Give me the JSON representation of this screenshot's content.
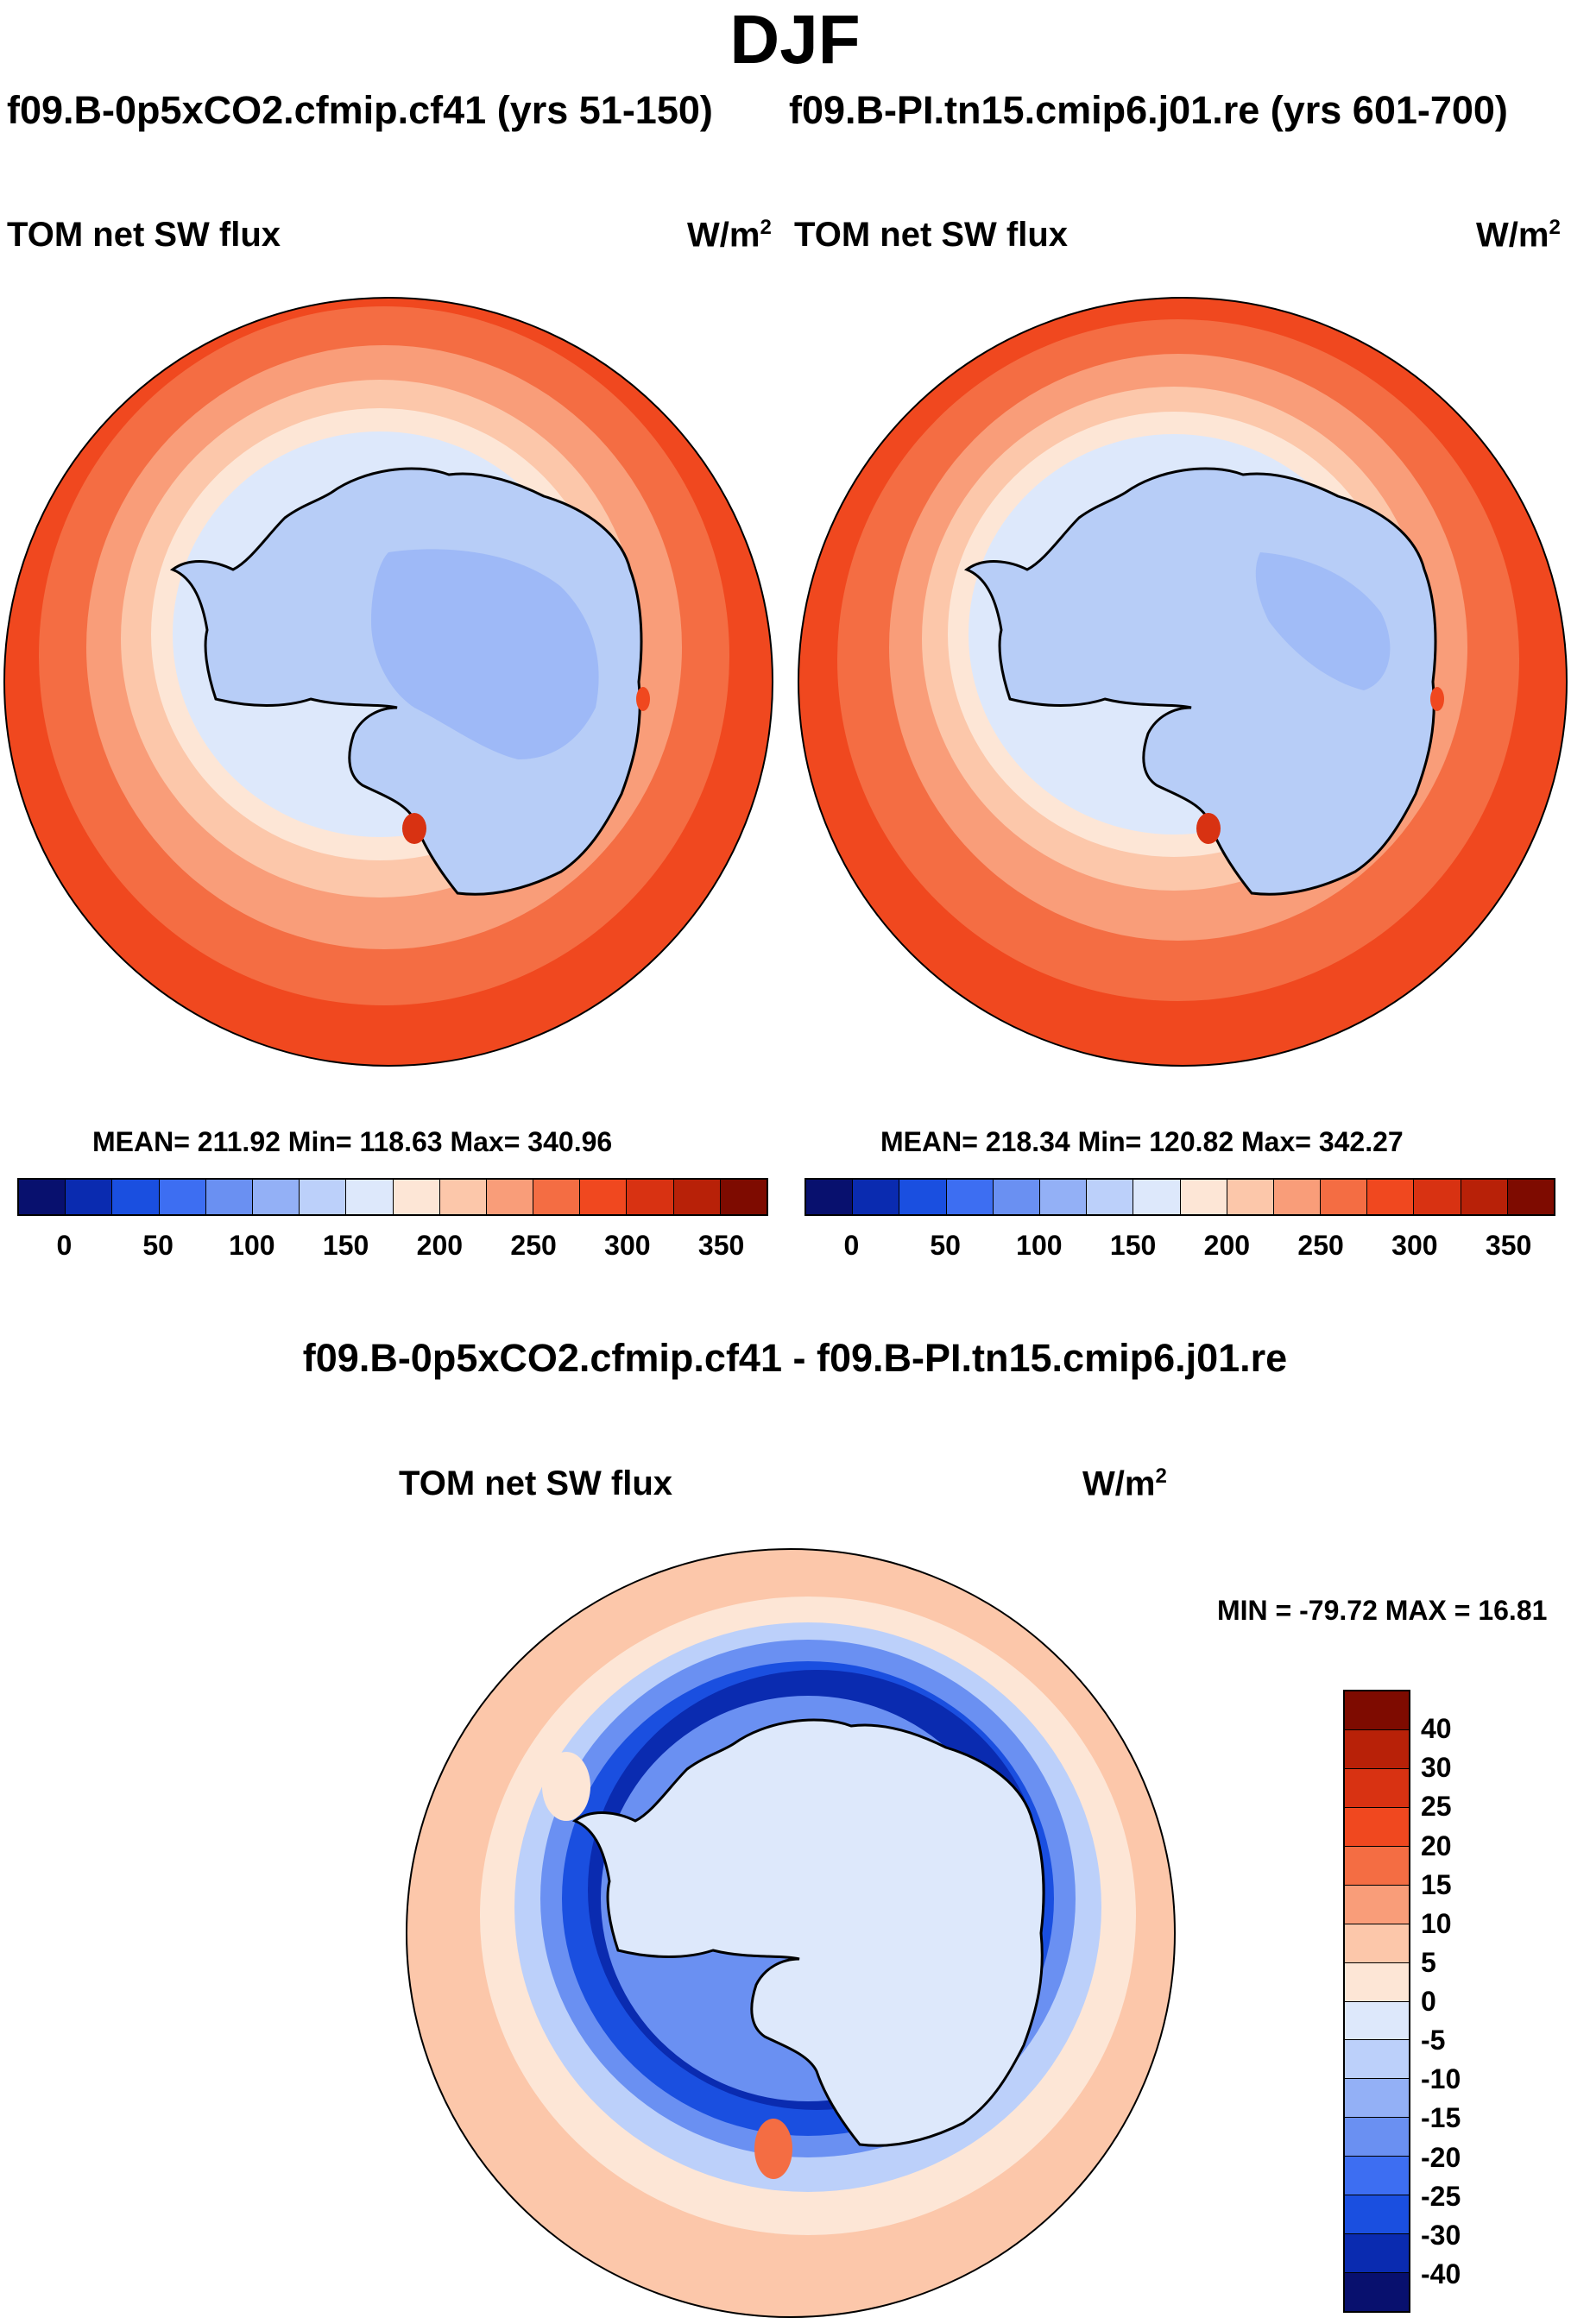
{
  "title": "DJF",
  "panel_left": {
    "case_title": "f09.B-0p5xCO2.cfmip.cf41 (yrs 51-150)",
    "variable": "TOM net SW flux",
    "units": "W/m",
    "units_exp": "2",
    "stats": "MEAN= 211.92  Min= 118.63  Max= 340.96"
  },
  "panel_right": {
    "case_title": "f09.B-PI.tn15.cmip6.j01.re (yrs 601-700)",
    "variable": "TOM net SW flux",
    "units": "W/m",
    "units_exp": "2",
    "stats": "MEAN= 218.34  Min= 120.82  Max= 342.27"
  },
  "panel_diff": {
    "title": "f09.B-0p5xCO2.cfmip.cf41 - f09.B-PI.tn15.cmip6.j01.re",
    "variable": "TOM net SW flux",
    "units": "W/m",
    "units_exp": "2",
    "stats": "MIN = -79.72 MAX =  16.81"
  },
  "colors": {
    "abs_scale": [
      "#08106e",
      "#0a2bb0",
      "#1a4fe0",
      "#3d6ef2",
      "#6a90f2",
      "#93b0f6",
      "#bcd0fa",
      "#dde8fb",
      "#fde6d6",
      "#fcc7aa",
      "#f99d79",
      "#f46d43",
      "#f0481f",
      "#d83212",
      "#b82108",
      "#7e0b00"
    ],
    "diff_scale": [
      "#08106e",
      "#0a2bb0",
      "#1a4fe0",
      "#3d6ef2",
      "#6a90f2",
      "#93b0f6",
      "#bcd0fa",
      "#dde8fb",
      "#fde6d6",
      "#fcc7aa",
      "#f99d79",
      "#f46d43",
      "#f0481f",
      "#d83212",
      "#b82108",
      "#7e0b00"
    ],
    "land": "#b7cdf7",
    "ocean_far": "#f0481f"
  },
  "chart_data": [
    {
      "type": "heatmap",
      "projection": "south polar stereographic",
      "title": "f09.B-0p5xCO2.cfmip.cf41 (yrs 51-150)",
      "variable": "TOM net SW flux",
      "units": "W/m2",
      "mean": 211.92,
      "min": 118.63,
      "max": 340.96,
      "colorbar_ticks": [
        0,
        50,
        100,
        150,
        200,
        250,
        300,
        350
      ]
    },
    {
      "type": "heatmap",
      "projection": "south polar stereographic",
      "title": "f09.B-PI.tn15.cmip6.j01.re (yrs 601-700)",
      "variable": "TOM net SW flux",
      "units": "W/m2",
      "mean": 218.34,
      "min": 120.82,
      "max": 342.27,
      "colorbar_ticks": [
        0,
        50,
        100,
        150,
        200,
        250,
        300,
        350
      ]
    },
    {
      "type": "heatmap",
      "projection": "south polar stereographic",
      "title": "f09.B-0p5xCO2.cfmip.cf41 - f09.B-PI.tn15.cmip6.j01.re",
      "variable": "TOM net SW flux",
      "units": "W/m2",
      "min": -79.72,
      "max": 16.81,
      "colorbar_ticks": [
        40,
        30,
        25,
        20,
        15,
        10,
        5,
        0,
        -5,
        -10,
        -15,
        -20,
        -25,
        -30,
        -40
      ]
    }
  ],
  "ticks_abs": [
    "0",
    "50",
    "100",
    "150",
    "200",
    "250",
    "300",
    "350"
  ],
  "ticks_diff": [
    "40",
    "30",
    "25",
    "20",
    "15",
    "10",
    "5",
    "0",
    "-5",
    "-10",
    "-15",
    "-20",
    "-25",
    "-30",
    "-40"
  ]
}
